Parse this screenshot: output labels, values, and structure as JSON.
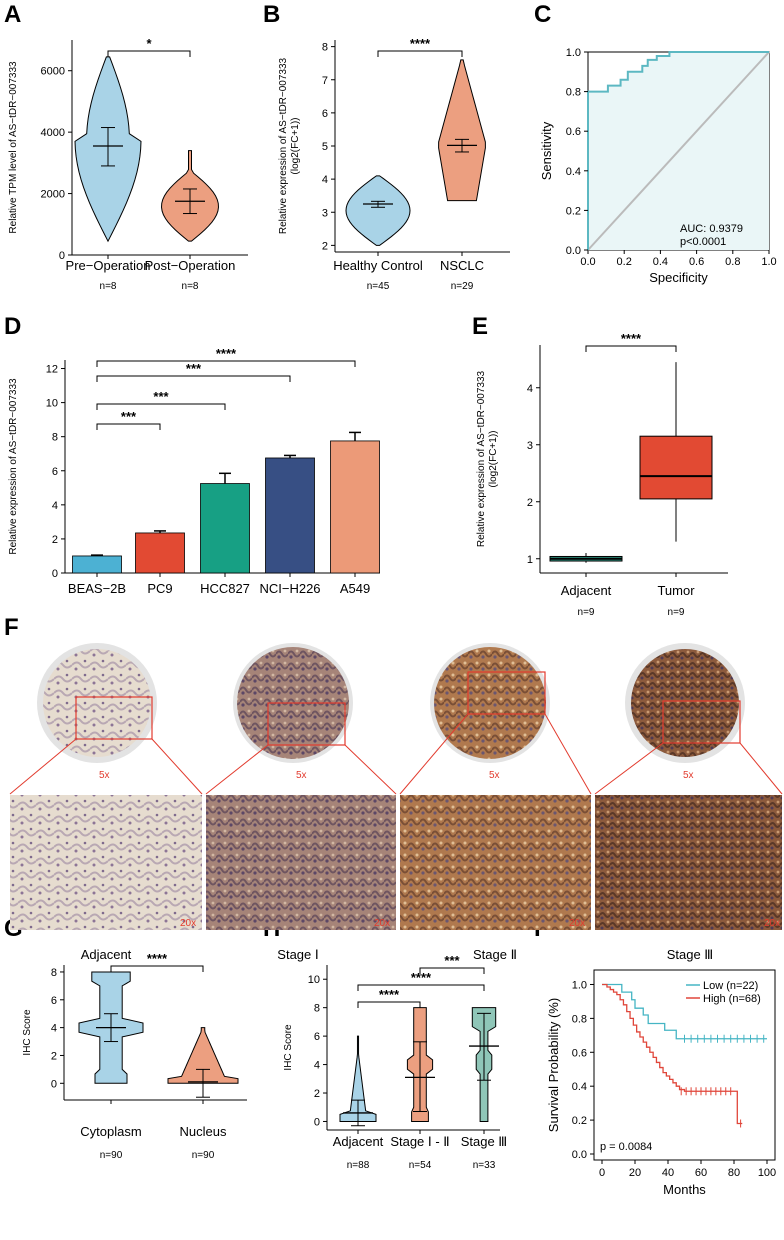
{
  "panels": {
    "A": "A",
    "B": "B",
    "C": "C",
    "D": "D",
    "E": "E",
    "F": "F",
    "G": "G",
    "H": "H",
    "I": "I"
  },
  "colors": {
    "blue": "#a9d3e7",
    "orange": "#ec9f80",
    "teal": "#5cb8c2",
    "red": "#e05a3f",
    "green": "#8fc6b8",
    "bar_blue": "#4cb1d3",
    "bar_red": "#e24a33",
    "bar_teal": "#17a084",
    "bar_navy": "#374f84",
    "bar_salmon": "#ec9a78",
    "box_green": "#2d9a86",
    "box_red": "#e24a33",
    "roc_grey": "#bbbbbb"
  },
  "chart_data": [
    {
      "id": "A",
      "type": "violin",
      "ylabel": "Relative TPM level of AS−tDR−007333",
      "ylim": [
        0,
        7000
      ],
      "yticks": [
        "0",
        "2000",
        "4000",
        "6000"
      ],
      "ytick_vals": [
        0,
        2000,
        4000,
        6000
      ],
      "categories": [
        "Pre−Operation",
        "Post−Operation"
      ],
      "n_labels": [
        "n=8",
        "n=8"
      ],
      "mean": [
        3550,
        1750
      ],
      "err_low": [
        2900,
        1350
      ],
      "err_high": [
        4150,
        2150
      ],
      "range": [
        [
          450,
          6450
        ],
        [
          450,
          3400
        ]
      ],
      "significance": [
        {
          "pair": [
            0,
            1
          ],
          "label": "*"
        }
      ]
    },
    {
      "id": "B",
      "type": "violin",
      "ylabel": "Relative expression of AS−tDR−007333",
      "ylabel2": "(log2(FC+1))",
      "ylim": [
        1.8,
        8.2
      ],
      "yticks": [
        "2",
        "3",
        "4",
        "5",
        "6",
        "7",
        "8"
      ],
      "ytick_vals": [
        2,
        3,
        4,
        5,
        6,
        7,
        8
      ],
      "categories": [
        "Healthy Control",
        "NSCLC"
      ],
      "n_labels": [
        "n=45",
        "n=29"
      ],
      "mean": [
        3.25,
        5.02
      ],
      "err_low": [
        3.15,
        4.82
      ],
      "err_high": [
        3.33,
        5.2
      ],
      "range": [
        [
          2.0,
          4.1
        ],
        [
          3.35,
          7.6
        ]
      ],
      "significance": [
        {
          "pair": [
            0,
            1
          ],
          "label": "****"
        }
      ]
    },
    {
      "id": "C",
      "type": "line",
      "xlabel": "Specificity",
      "ylabel": "Sensitivity",
      "xlim": [
        0,
        1
      ],
      "ylim": [
        0,
        1
      ],
      "ticks": [
        "0.0",
        "0.2",
        "0.4",
        "0.6",
        "0.8",
        "1.0"
      ],
      "tick_vals": [
        0,
        0.2,
        0.4,
        0.6,
        0.8,
        1.0
      ],
      "roc_x": [
        0,
        0,
        0.11,
        0.11,
        0.18,
        0.18,
        0.22,
        0.22,
        0.3,
        0.3,
        0.33,
        0.33,
        0.38,
        0.38,
        0.45,
        0.45,
        1.0
      ],
      "roc_y": [
        0,
        0.8,
        0.8,
        0.83,
        0.83,
        0.86,
        0.86,
        0.9,
        0.9,
        0.93,
        0.93,
        0.96,
        0.96,
        0.98,
        0.98,
        1.0,
        1.0
      ],
      "annotation": [
        "AUC: 0.9379",
        "p<0.0001"
      ]
    },
    {
      "id": "D",
      "type": "bar",
      "ylabel": "Relative expression of AS−tDR−007333",
      "ylim": [
        0,
        12.5
      ],
      "yticks": [
        "0",
        "2",
        "4",
        "6",
        "8",
        "10",
        "12"
      ],
      "ytick_vals": [
        0,
        2,
        4,
        6,
        8,
        10,
        12
      ],
      "categories": [
        "BEAS−2B",
        "PC9",
        "HCC827",
        "NCI−H226",
        "A549"
      ],
      "values": [
        1.0,
        2.35,
        5.25,
        6.75,
        7.75
      ],
      "errors": [
        0.05,
        0.12,
        0.6,
        0.15,
        0.5
      ],
      "significance": [
        {
          "pair": [
            0,
            1
          ],
          "label": "***"
        },
        {
          "pair": [
            0,
            2
          ],
          "label": "***"
        },
        {
          "pair": [
            0,
            3
          ],
          "label": "***"
        },
        {
          "pair": [
            0,
            4
          ],
          "label": "****"
        }
      ]
    },
    {
      "id": "E",
      "type": "box",
      "ylabel": "Relative expression of AS−tDR−007333",
      "ylabel2": "(log2(FC+1))",
      "ylim": [
        0.75,
        4.75
      ],
      "yticks": [
        "1",
        "2",
        "3",
        "4"
      ],
      "ytick_vals": [
        1,
        2,
        3,
        4
      ],
      "categories": [
        "Adjacent",
        "Tumor"
      ],
      "n_labels": [
        "n=9",
        "n=9"
      ],
      "box": [
        {
          "min": 0.93,
          "q1": 0.96,
          "median": 1.0,
          "q3": 1.04,
          "max": 1.1
        },
        {
          "min": 1.3,
          "q1": 2.05,
          "median": 2.45,
          "q3": 3.15,
          "max": 4.45
        }
      ],
      "significance": [
        {
          "pair": [
            0,
            1
          ],
          "label": "****"
        }
      ]
    },
    {
      "id": "G",
      "type": "violin",
      "ylabel": "IHC Score",
      "ylim": [
        -1.2,
        8.5
      ],
      "yticks": [
        "0",
        "2",
        "4",
        "6",
        "8"
      ],
      "ytick_vals": [
        0,
        2,
        4,
        6,
        8
      ],
      "categories": [
        "Cytoplasm",
        "Nucleus"
      ],
      "n_labels": [
        "n=90",
        "n=90"
      ],
      "mean": [
        4.0,
        0.1
      ],
      "err_low": [
        3.0,
        -1.0
      ],
      "err_high": [
        5.0,
        1.0
      ],
      "range": [
        [
          0,
          8
        ],
        [
          0,
          4
        ]
      ],
      "significance": [
        {
          "pair": [
            0,
            1
          ],
          "label": "****"
        }
      ]
    },
    {
      "id": "H",
      "type": "violin",
      "ylabel": "IHC Score",
      "ylim": [
        -0.6,
        11
      ],
      "yticks": [
        "0",
        "2",
        "4",
        "6",
        "8",
        "10"
      ],
      "ytick_vals": [
        0,
        2,
        4,
        6,
        8,
        10
      ],
      "categories": [
        "Adjacent",
        "Stage Ⅰ - Ⅱ",
        "Stage Ⅲ"
      ],
      "n_labels": [
        "n=88",
        "n=54",
        "n=33"
      ],
      "mean": [
        0.6,
        3.1,
        5.3
      ],
      "err_low": [
        -0.3,
        0.7,
        2.9
      ],
      "err_high": [
        1.5,
        5.6,
        7.6
      ],
      "range": [
        [
          0,
          6
        ],
        [
          0,
          8
        ],
        [
          0,
          8
        ]
      ],
      "significance": [
        {
          "pair": [
            0,
            1
          ],
          "label": "****"
        },
        {
          "pair": [
            0,
            2
          ],
          "label": "****"
        },
        {
          "pair": [
            1,
            2
          ],
          "label": "***"
        }
      ]
    },
    {
      "id": "I",
      "type": "line",
      "xlabel": "Months",
      "ylabel": "Survival Probability (%)",
      "xlim": [
        0,
        100
      ],
      "ylim": [
        0,
        1.05
      ],
      "xticks": [
        "0",
        "20",
        "40",
        "60",
        "80",
        "100"
      ],
      "xtick_vals": [
        0,
        20,
        40,
        60,
        80,
        100
      ],
      "yticks": [
        "0.0",
        "0.2",
        "0.4",
        "0.6",
        "0.8",
        "1.0"
      ],
      "ytick_vals": [
        0,
        0.2,
        0.4,
        0.6,
        0.8,
        1.0
      ],
      "series": [
        {
          "name": "Low (n=22)",
          "color": "#45b5c4",
          "x": [
            0,
            10,
            12,
            15,
            18,
            20,
            22,
            25,
            28,
            32,
            38,
            45,
            48,
            100
          ],
          "y": [
            1.0,
            1.0,
            0.955,
            0.955,
            0.91,
            0.86,
            0.86,
            0.82,
            0.77,
            0.77,
            0.73,
            0.68,
            0.68,
            0.68
          ]
        },
        {
          "name": "High (n=68)",
          "color": "#e0463a",
          "x": [
            0,
            3,
            5,
            7,
            9,
            11,
            13,
            15,
            17,
            19,
            21,
            23,
            25,
            27,
            29,
            31,
            33,
            35,
            37,
            39,
            41,
            43,
            45,
            47,
            50,
            55,
            60,
            70,
            82,
            85
          ],
          "y": [
            1.0,
            0.985,
            0.97,
            0.955,
            0.94,
            0.91,
            0.88,
            0.84,
            0.8,
            0.76,
            0.72,
            0.69,
            0.66,
            0.63,
            0.6,
            0.57,
            0.54,
            0.51,
            0.48,
            0.46,
            0.44,
            0.42,
            0.4,
            0.38,
            0.37,
            0.37,
            0.37,
            0.37,
            0.18,
            0.18
          ]
        }
      ],
      "annotation": "p = 0.0084"
    }
  ],
  "ihc": {
    "stages": [
      "Adjacent",
      "Stage Ⅰ",
      "Stage Ⅱ",
      "Stage Ⅲ"
    ],
    "mag_low": "5x",
    "mag_high": "20x"
  }
}
